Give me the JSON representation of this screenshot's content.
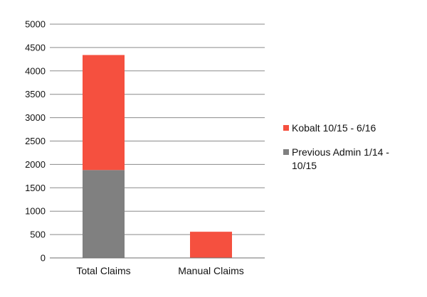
{
  "chart_data": {
    "type": "bar",
    "stacked": true,
    "categories": [
      "Total Claims",
      "Manual Claims"
    ],
    "series": [
      {
        "name": "Previous Admin 1/14 - 10/15",
        "values": [
          1880,
          0
        ],
        "color": "#808080"
      },
      {
        "name": "Kobalt 10/15 - 6/16",
        "values": [
          2460,
          560
        ],
        "color": "#f5503f"
      }
    ],
    "ylim": [
      0,
      5000
    ],
    "yticks": [
      "0",
      "500",
      "1000",
      "1500",
      "2000",
      "2500",
      "3000",
      "3500",
      "4000",
      "4500",
      "5000"
    ],
    "grid": true,
    "legend": {
      "position": "right",
      "entries": [
        {
          "label": "Kobalt 10/15 - 6/16",
          "lines": [
            "Kobalt 10/15 - 6/16"
          ],
          "color": "#f5503f"
        },
        {
          "label": "Previous Admin 1/14 - 10/15",
          "lines": [
            "Previous Admin 1/14 -",
            "10/15"
          ],
          "color": "#808080"
        }
      ]
    }
  }
}
